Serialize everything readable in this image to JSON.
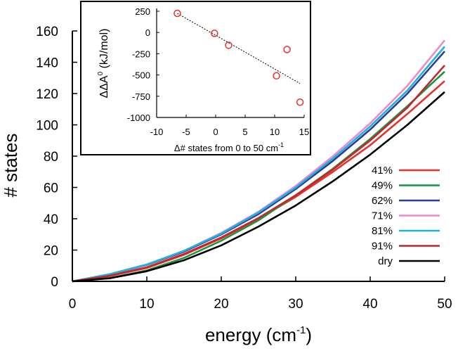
{
  "chart_data": [
    {
      "type": "line",
      "title": "",
      "xlabel": "energy (cm",
      "xlabel_sup": "-1",
      "xlabel_tail": ")",
      "ylabel": "# states",
      "xlim": [
        0,
        50
      ],
      "ylim": [
        0,
        160
      ],
      "xticks": [
        0,
        10,
        20,
        30,
        40,
        50
      ],
      "yticks": [
        0,
        20,
        40,
        60,
        80,
        100,
        120,
        140,
        160
      ],
      "x": [
        0,
        5,
        10,
        15,
        20,
        25,
        30,
        35,
        40,
        45,
        50
      ],
      "legend_position": "right",
      "series": [
        {
          "name": "41%",
          "color": "#e8312d",
          "values": [
            0,
            3.3,
            8.6,
            17,
            27.5,
            40,
            54,
            70,
            87,
            107,
            128
          ]
        },
        {
          "name": "49%",
          "color": "#1a9641",
          "values": [
            0,
            2.0,
            7.0,
            15,
            26,
            39,
            55,
            72,
            91,
            112,
            134
          ]
        },
        {
          "name": "62%",
          "color": "#2c3d8f",
          "values": [
            0,
            4.5,
            10.5,
            19,
            30,
            43,
            59,
            77,
            97,
            120,
            147
          ]
        },
        {
          "name": "71%",
          "color": "#f08ac8",
          "values": [
            0,
            4.5,
            10.7,
            19.5,
            31,
            44.5,
            61,
            80,
            101,
            125,
            154
          ]
        },
        {
          "name": "81%",
          "color": "#1ab2e0",
          "values": [
            0,
            4.6,
            10.8,
            19.5,
            30.5,
            44,
            60,
            78.5,
            99,
            122,
            150
          ]
        },
        {
          "name": "91%",
          "color": "#c1272d",
          "values": [
            0,
            3.6,
            9.0,
            17.5,
            28,
            40.5,
            55,
            71.5,
            90,
            111,
            138
          ]
        },
        {
          "name": "dry",
          "color": "#000000",
          "values": [
            0,
            2.0,
            6.5,
            13.5,
            23,
            35,
            48.5,
            64,
            81,
            100,
            121
          ]
        }
      ]
    },
    {
      "type": "scatter",
      "title": "",
      "xlabel": "Δ# states from 0 to 50 cm",
      "xlabel_sup": "-1",
      "ylabel": "ΔΔA",
      "ylabel_sup": "0",
      "ylabel_tail": " (kJ/mol)",
      "xlim": [
        -10,
        15
      ],
      "ylim": [
        -1000,
        250
      ],
      "xticks": [
        -10,
        -5,
        0,
        5,
        10,
        15
      ],
      "yticks": [
        250,
        0,
        -250,
        -500,
        -750,
        -1000
      ],
      "points": [
        {
          "x": -6.5,
          "y": 225
        },
        {
          "x": -0.2,
          "y": -10
        },
        {
          "x": 2.2,
          "y": -150
        },
        {
          "x": 10.3,
          "y": -510
        },
        {
          "x": 12.1,
          "y": -200
        },
        {
          "x": 14.3,
          "y": -820
        }
      ],
      "marker_color": "#e8312d",
      "fit_line": {
        "x": [
          -6.5,
          14.3
        ],
        "y": [
          225,
          -600
        ]
      }
    }
  ]
}
